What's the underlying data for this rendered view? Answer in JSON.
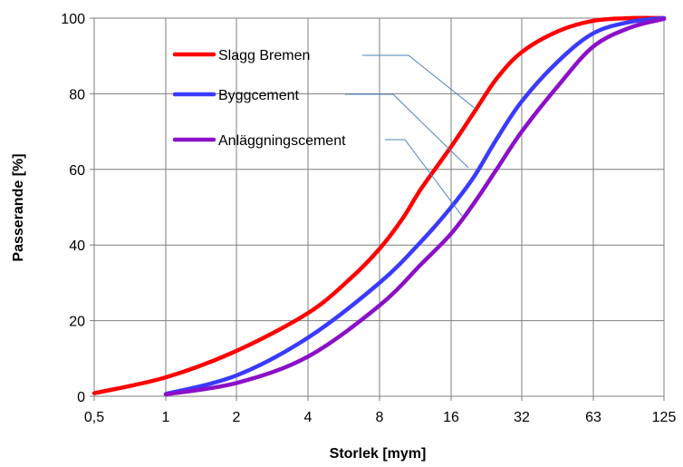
{
  "chart_data": {
    "type": "line",
    "title": "",
    "xlabel": "Storlek [mym]",
    "ylabel": "Passerande [%]",
    "x_scale": "log2",
    "xlim": [
      0.5,
      125
    ],
    "ylim": [
      0,
      100
    ],
    "grid": true,
    "x_ticks": [
      0.5,
      1,
      2,
      4,
      8,
      16,
      32,
      63,
      125
    ],
    "x_tick_labels": [
      "0,5",
      "1",
      "2",
      "4",
      "8",
      "16",
      "32",
      "63",
      "125"
    ],
    "y_ticks": [
      0,
      20,
      40,
      60,
      80,
      100
    ],
    "y_tick_labels": [
      "0",
      "20",
      "40",
      "60",
      "80",
      "100"
    ],
    "legend_placement": "top-left (callout labels with leader lines)",
    "series": [
      {
        "name": "Slagg Bremen",
        "color": "#ff0000",
        "points": [
          [
            0.5,
            0.8
          ],
          [
            1,
            5
          ],
          [
            2,
            12
          ],
          [
            4,
            22
          ],
          [
            6,
            31
          ],
          [
            8,
            39
          ],
          [
            10,
            47
          ],
          [
            12,
            55
          ],
          [
            16,
            66
          ],
          [
            20,
            75
          ],
          [
            25,
            84
          ],
          [
            32,
            91
          ],
          [
            45,
            96.5
          ],
          [
            63,
            99.3
          ],
          [
            90,
            100
          ],
          [
            125,
            100
          ]
        ]
      },
      {
        "name": "Byggcement",
        "color": "#3a3aff",
        "points": [
          [
            1,
            0.6
          ],
          [
            2,
            5.5
          ],
          [
            4,
            15.5
          ],
          [
            8,
            30
          ],
          [
            12,
            41
          ],
          [
            16,
            50
          ],
          [
            20,
            58
          ],
          [
            25,
            68
          ],
          [
            32,
            78
          ],
          [
            45,
            88.5
          ],
          [
            63,
            96
          ],
          [
            90,
            99
          ],
          [
            125,
            100
          ]
        ]
      },
      {
        "name": "Anläggningscement",
        "color": "#8b10c8",
        "points": [
          [
            1,
            0.5
          ],
          [
            2,
            3.5
          ],
          [
            4,
            10.5
          ],
          [
            8,
            24
          ],
          [
            12,
            35
          ],
          [
            16,
            43
          ],
          [
            20,
            51
          ],
          [
            25,
            60
          ],
          [
            32,
            70
          ],
          [
            45,
            82
          ],
          [
            63,
            92.5
          ],
          [
            90,
            97.5
          ],
          [
            125,
            99.8
          ]
        ]
      }
    ]
  }
}
